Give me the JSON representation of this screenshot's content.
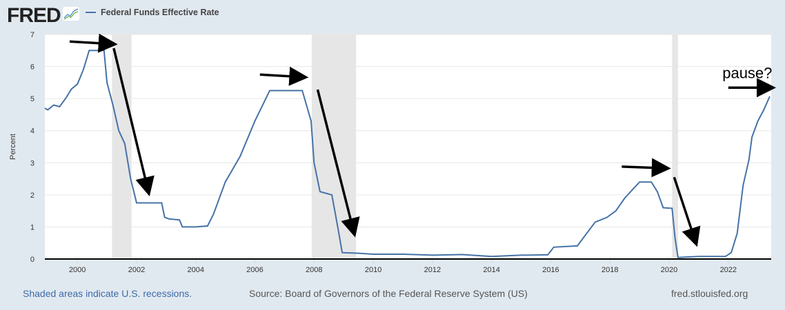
{
  "header": {
    "logo": "FRED",
    "legend_label": "Federal Funds Effective Rate"
  },
  "footer": {
    "recessions_note": "Shaded areas indicate U.S. recessions.",
    "source": "Source: Board of Governors of the Federal Reserve System (US)",
    "site": "fred.stlouisfed.org"
  },
  "chart_data": {
    "type": "line",
    "ylabel": "Percent",
    "xlim": [
      1998.9,
      2023.45
    ],
    "ylim": [
      0,
      7
    ],
    "yticks": [
      "0",
      "1",
      "2",
      "3",
      "4",
      "5",
      "6",
      "7"
    ],
    "xticks": [
      "2000",
      "2002",
      "2004",
      "2006",
      "2008",
      "2010",
      "2012",
      "2014",
      "2016",
      "2018",
      "2020",
      "2022"
    ],
    "grid": "horizontal",
    "line_color": "#4572a7",
    "recession_color": "#e6e6e6",
    "recessions": [
      [
        2001.17,
        2001.83
      ],
      [
        2007.92,
        2009.42
      ],
      [
        2020.1,
        2020.3
      ]
    ],
    "series": [
      {
        "name": "Federal Funds Effective Rate",
        "points": [
          [
            1998.9,
            4.7
          ],
          [
            1999.0,
            4.65
          ],
          [
            1999.2,
            4.8
          ],
          [
            1999.4,
            4.75
          ],
          [
            1999.6,
            5.0
          ],
          [
            1999.8,
            5.3
          ],
          [
            2000.0,
            5.45
          ],
          [
            2000.2,
            5.9
          ],
          [
            2000.4,
            6.5
          ],
          [
            2000.6,
            6.5
          ],
          [
            2000.9,
            6.5
          ],
          [
            2001.0,
            5.5
          ],
          [
            2001.2,
            4.8
          ],
          [
            2001.4,
            4.0
          ],
          [
            2001.6,
            3.6
          ],
          [
            2001.8,
            2.5
          ],
          [
            2002.0,
            1.75
          ],
          [
            2002.5,
            1.75
          ],
          [
            2002.85,
            1.75
          ],
          [
            2002.95,
            1.3
          ],
          [
            2003.1,
            1.25
          ],
          [
            2003.45,
            1.22
          ],
          [
            2003.55,
            1.0
          ],
          [
            2004.0,
            1.0
          ],
          [
            2004.4,
            1.03
          ],
          [
            2004.6,
            1.4
          ],
          [
            2005.0,
            2.4
          ],
          [
            2005.5,
            3.2
          ],
          [
            2006.0,
            4.3
          ],
          [
            2006.5,
            5.25
          ],
          [
            2007.0,
            5.25
          ],
          [
            2007.6,
            5.25
          ],
          [
            2007.9,
            4.3
          ],
          [
            2008.0,
            3.0
          ],
          [
            2008.2,
            2.1
          ],
          [
            2008.6,
            2.0
          ],
          [
            2008.8,
            1.0
          ],
          [
            2008.95,
            0.2
          ],
          [
            2009.5,
            0.18
          ],
          [
            2010.0,
            0.15
          ],
          [
            2011.0,
            0.15
          ],
          [
            2012.0,
            0.12
          ],
          [
            2013.0,
            0.14
          ],
          [
            2014.0,
            0.08
          ],
          [
            2015.0,
            0.12
          ],
          [
            2015.9,
            0.13
          ],
          [
            2016.1,
            0.37
          ],
          [
            2016.9,
            0.41
          ],
          [
            2017.1,
            0.66
          ],
          [
            2017.5,
            1.15
          ],
          [
            2017.9,
            1.3
          ],
          [
            2018.2,
            1.5
          ],
          [
            2018.5,
            1.9
          ],
          [
            2018.9,
            2.3
          ],
          [
            2019.0,
            2.4
          ],
          [
            2019.4,
            2.4
          ],
          [
            2019.6,
            2.1
          ],
          [
            2019.8,
            1.6
          ],
          [
            2020.1,
            1.58
          ],
          [
            2020.2,
            0.65
          ],
          [
            2020.3,
            0.05
          ],
          [
            2021.0,
            0.08
          ],
          [
            2021.9,
            0.08
          ],
          [
            2022.1,
            0.2
          ],
          [
            2022.3,
            0.8
          ],
          [
            2022.5,
            2.3
          ],
          [
            2022.7,
            3.1
          ],
          [
            2022.8,
            3.8
          ],
          [
            2023.0,
            4.3
          ],
          [
            2023.2,
            4.65
          ],
          [
            2023.4,
            5.07
          ]
        ]
      }
    ],
    "annotations": {
      "text": "pause?",
      "text_at": [
        2021.8,
        5.85
      ],
      "arrows": [
        [
          [
            1999.74,
            6.78
          ],
          [
            2001.2,
            6.7
          ]
        ],
        [
          [
            2001.23,
            6.57
          ],
          [
            2002.4,
            2.1
          ]
        ],
        [
          [
            2006.17,
            5.75
          ],
          [
            2007.65,
            5.67
          ]
        ],
        [
          [
            2008.12,
            5.28
          ],
          [
            2009.35,
            0.82
          ]
        ],
        [
          [
            2018.4,
            2.88
          ],
          [
            2019.9,
            2.83
          ]
        ],
        [
          [
            2020.17,
            2.55
          ],
          [
            2020.9,
            0.52
          ]
        ],
        [
          [
            2022.0,
            5.34
          ],
          [
            2023.45,
            5.34
          ]
        ]
      ]
    }
  }
}
